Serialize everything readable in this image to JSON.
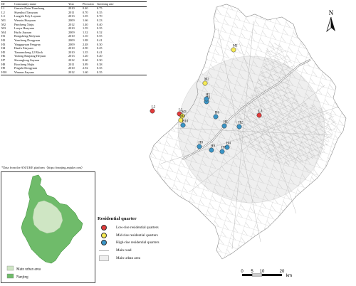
{
  "table": {
    "headers": [
      "ID",
      "Community name",
      "Year",
      "Plot ratio",
      "Greening rate"
    ],
    "rows": [
      [
        "L1",
        "Gunxiu Zixin Tianchang",
        "2010",
        "0.40",
        "0.75"
      ],
      [
        "L2",
        "Shanshui Tianyuan",
        "2011",
        "0.70",
        "0.35"
      ],
      [
        "L3",
        "Langshi Poly Luyuan",
        "2013",
        "1.05",
        "0.70"
      ],
      [
        "M1",
        "Wenxiu Huayuan",
        "2009",
        "1.66",
        "0.23"
      ],
      [
        "M2",
        "Pancheng Xinju",
        "2012",
        "1.40",
        "0.40"
      ],
      [
        "M3",
        "Luoyu Huayuan",
        "2010",
        "1.59",
        "0.35"
      ],
      [
        "M4",
        "Huifu Jiayuan",
        "2009",
        "1.32",
        "0.32"
      ],
      [
        "H1",
        "Rongsheng Molyuan",
        "2010",
        "1.10",
        "0.55"
      ],
      [
        "H2",
        "Yuncheng Dongyuan",
        "2009",
        "1.88",
        "0.41"
      ],
      [
        "H3",
        "Yingppyuan Fengyuy",
        "2009",
        "2.48",
        "0.30"
      ],
      [
        "H4",
        "Huafu Xinyuan",
        "2010",
        "2.90",
        "0.25"
      ],
      [
        "H5",
        "Tianrancheng 12 Block",
        "2010",
        "1.35",
        "0.41"
      ],
      [
        "H6",
        "Yadong Baujiang Heyuan",
        "2013",
        "1.20",
        "0.20"
      ],
      [
        "H7",
        "Shounglong Jiayuan",
        "2012",
        "0.60",
        "0.30"
      ],
      [
        "H8",
        "Bozcheng Shijia",
        "2011",
        "3.89",
        "0.38"
      ],
      [
        "H9",
        "Pingzhi Dongyuan",
        "2010",
        "2.92",
        "0.35"
      ],
      [
        "H10",
        "Wanrun Jiayuan",
        "2012",
        "1.60",
        "0.35"
      ]
    ]
  },
  "footnote": "*Data from the ANJUKE platform（https://nanjing.anjuke.com）",
  "inset": {
    "legend": [
      {
        "label": "Main urban area",
        "color": "#cfe6c4"
      },
      {
        "label": "Nanjing",
        "color": "#6fbb6a"
      }
    ]
  },
  "legend": {
    "title": "Residential quarter",
    "items": [
      {
        "label": "Low-rise residential quarters",
        "color": "#e23b3b",
        "type": "dot"
      },
      {
        "label": "Mid-rise residential quarters",
        "color": "#f5ea55",
        "type": "dot"
      },
      {
        "label": "High-rise residential quarters",
        "color": "#3a95c7",
        "type": "dot"
      },
      {
        "label": "Main road",
        "type": "line"
      },
      {
        "label": "Main urban area",
        "type": "area"
      }
    ]
  },
  "north": "N",
  "scale": {
    "ticks": [
      "0",
      "5",
      "10",
      "20"
    ],
    "unit": "km"
  },
  "map_labels": [
    {
      "id": "L1",
      "type": "low"
    },
    {
      "id": "L2",
      "type": "low"
    },
    {
      "id": "L3",
      "type": "low"
    },
    {
      "id": "M1",
      "type": "mid"
    },
    {
      "id": "M2",
      "type": "mid"
    },
    {
      "id": "M3",
      "type": "mid"
    },
    {
      "id": "M4",
      "type": "mid"
    },
    {
      "id": "H1",
      "type": "high"
    },
    {
      "id": "H2",
      "type": "high"
    },
    {
      "id": "H3",
      "type": "high"
    },
    {
      "id": "H4",
      "type": "high"
    },
    {
      "id": "H5",
      "type": "high"
    },
    {
      "id": "H6",
      "type": "high"
    },
    {
      "id": "H7",
      "type": "high"
    },
    {
      "id": "H8",
      "type": "high"
    },
    {
      "id": "H9",
      "type": "high"
    },
    {
      "id": "H10",
      "type": "high"
    }
  ],
  "colors": {
    "low": "#e23b3b",
    "mid": "#f5ea55",
    "high": "#3a95c7",
    "urban_area": "#eeeeee",
    "road": "#b5b5b5"
  }
}
